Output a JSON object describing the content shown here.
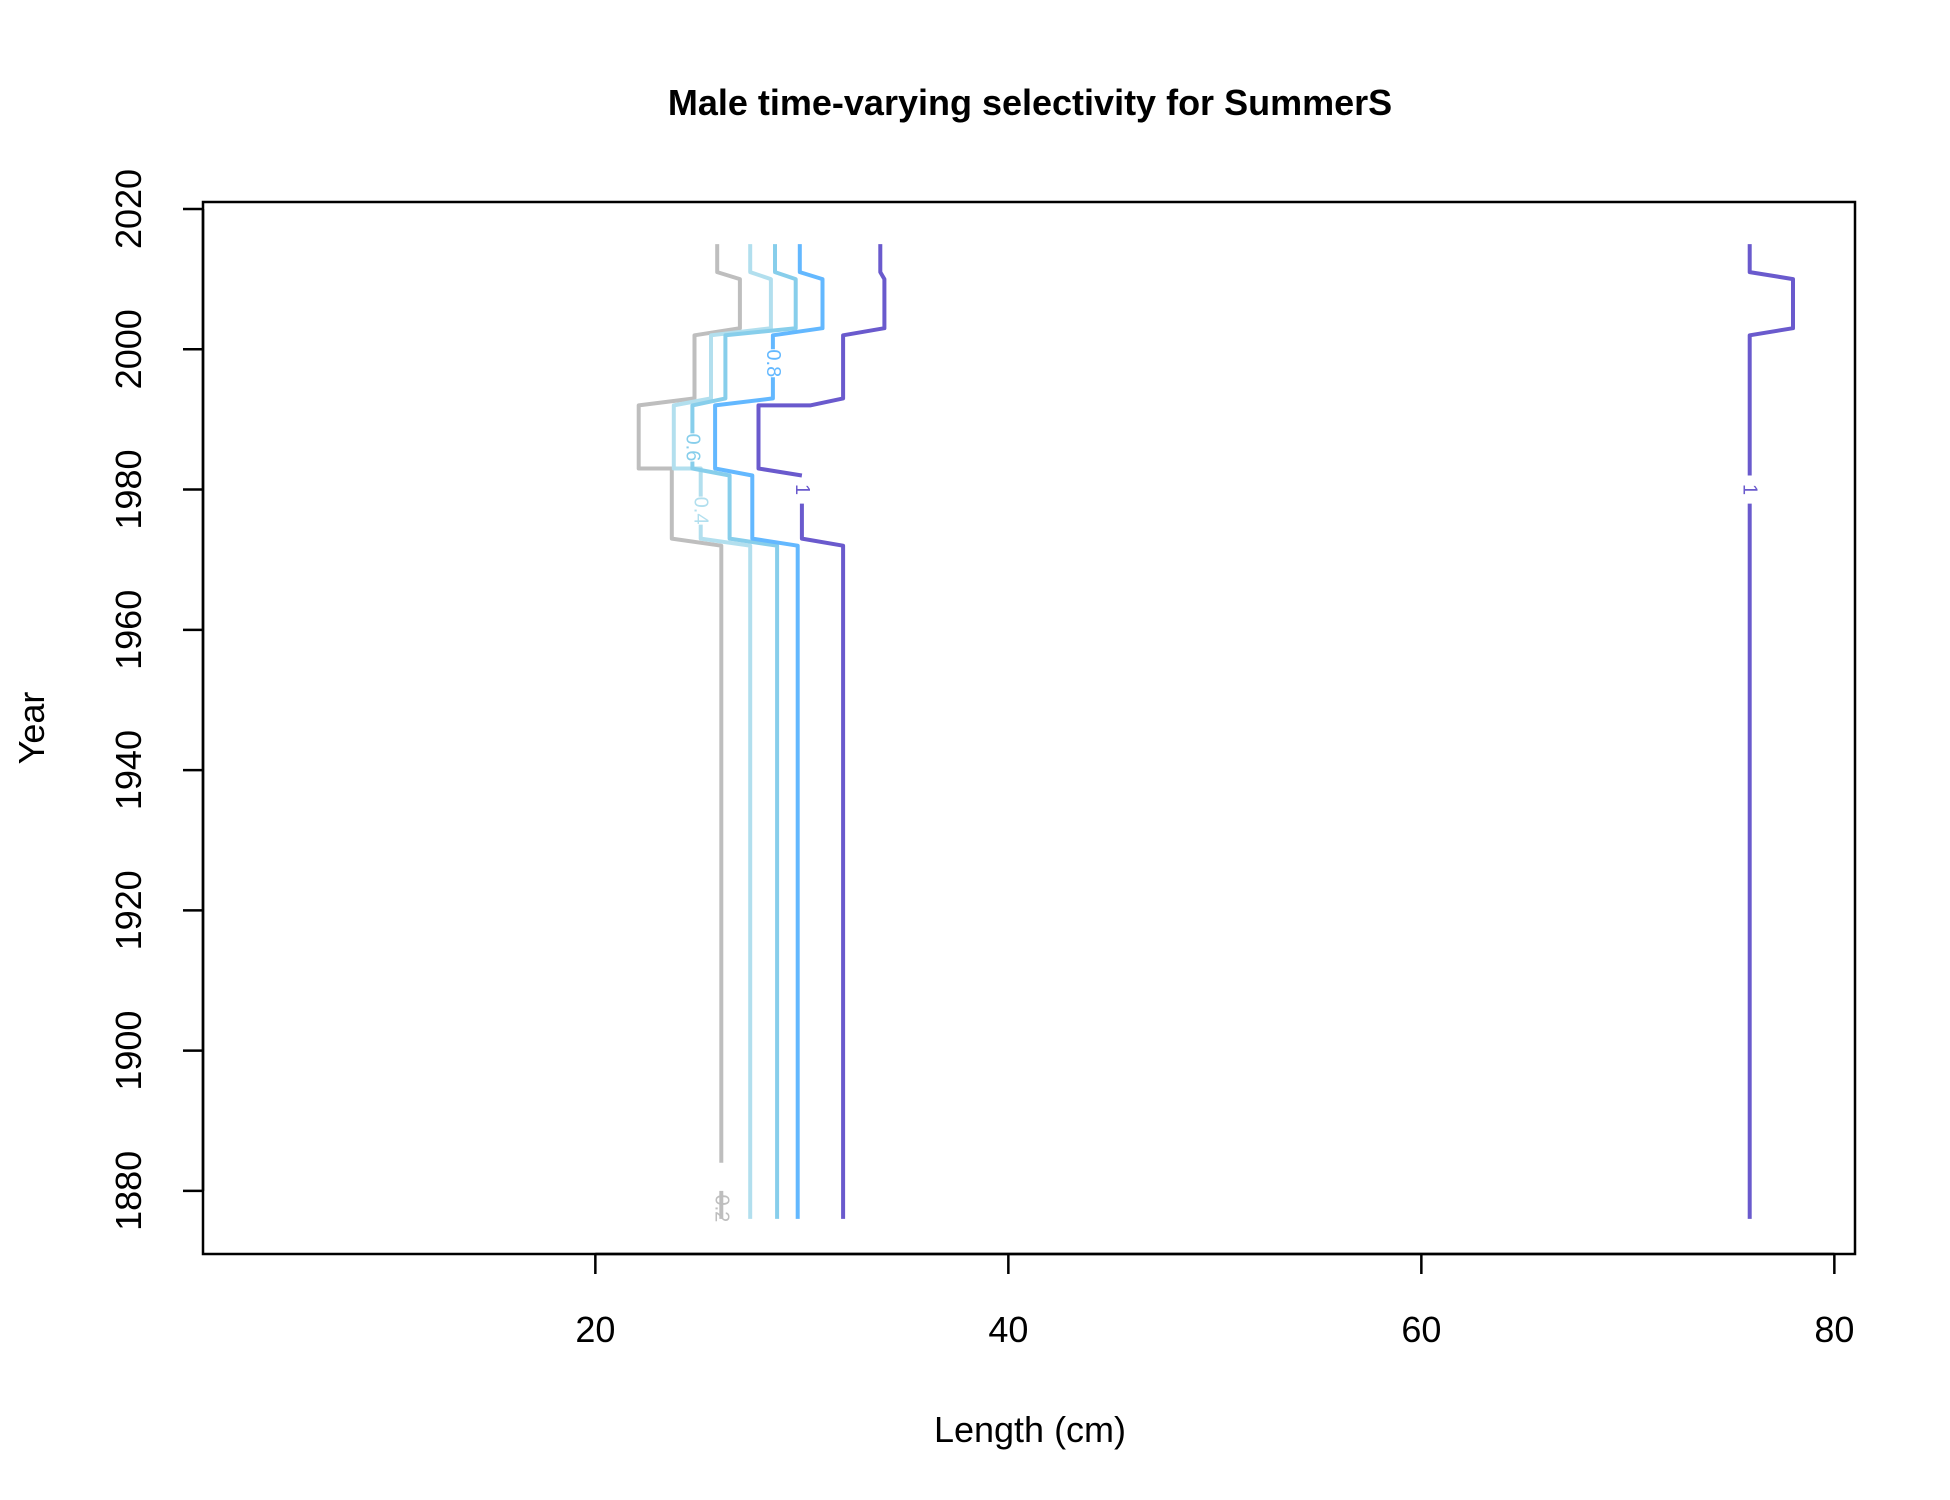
{
  "chart_data": {
    "type": "line",
    "title": "Male time-varying selectivity for SummerS",
    "xlabel": "Length (cm)",
    "ylabel": "Year",
    "xlim": [
      1,
      81
    ],
    "ylim": [
      1871,
      2021
    ],
    "x_ticks": [
      {
        "value": 20,
        "label": "20"
      },
      {
        "value": 40,
        "label": "40"
      },
      {
        "value": 60,
        "label": "60"
      },
      {
        "value": 80,
        "label": "80"
      }
    ],
    "y_ticks": [
      {
        "value": 1880,
        "label": "1880"
      },
      {
        "value": 1900,
        "label": "1900"
      },
      {
        "value": 1920,
        "label": "1920"
      },
      {
        "value": 1940,
        "label": "1940"
      },
      {
        "value": 1960,
        "label": "1960"
      },
      {
        "value": 1980,
        "label": "1980"
      },
      {
        "value": 2000,
        "label": "2000"
      },
      {
        "value": 2020,
        "label": "2020"
      }
    ],
    "series": [
      {
        "label": "0.2",
        "color": "#bebebe",
        "label_at": [
          26.1,
          1877.5
        ],
        "segments": [
          [
            [
              26.1,
              1876
            ],
            [
              26.1,
              1880
            ]
          ],
          [
            [
              26.1,
              1884
            ],
            [
              26.1,
              1972
            ],
            [
              23.7,
              1973
            ],
            [
              23.7,
              1983
            ],
            [
              22.1,
              1983
            ],
            [
              22.1,
              1992
            ],
            [
              24.8,
              1993
            ],
            [
              24.8,
              2002
            ],
            [
              27.0,
              2003
            ],
            [
              27.0,
              2010
            ],
            [
              25.9,
              2011
            ],
            [
              25.9,
              2015
            ]
          ]
        ]
      },
      {
        "label": "0.4",
        "color": "#b2dfee",
        "label_at": [
          25.1,
          1977
        ],
        "segments": [
          [
            [
              27.5,
              1876
            ],
            [
              27.5,
              1972
            ],
            [
              25.1,
              1973
            ],
            [
              25.1,
              1975
            ]
          ],
          [
            [
              25.1,
              1979
            ],
            [
              25.1,
              1983
            ],
            [
              23.8,
              1983
            ],
            [
              23.8,
              1992
            ],
            [
              25.6,
              1993
            ],
            [
              25.6,
              2002
            ],
            [
              28.5,
              2003
            ],
            [
              28.5,
              2010
            ],
            [
              27.5,
              2011
            ],
            [
              27.5,
              2015
            ]
          ]
        ]
      },
      {
        "label": "0.6",
        "color": "#87ceeb",
        "label_at": [
          24.7,
          1986
        ],
        "segments": [
          [
            [
              28.8,
              1876
            ],
            [
              28.8,
              1972
            ],
            [
              26.5,
              1973
            ],
            [
              26.5,
              1982
            ],
            [
              24.7,
              1983
            ],
            [
              24.7,
              1984
            ]
          ],
          [
            [
              24.7,
              1988
            ],
            [
              24.7,
              1992
            ],
            [
              26.3,
              1993
            ],
            [
              26.3,
              2002
            ],
            [
              29.7,
              2003
            ],
            [
              29.7,
              2010
            ],
            [
              28.7,
              2011
            ],
            [
              28.7,
              2015
            ]
          ]
        ]
      },
      {
        "label": "0.8",
        "color": "#63b8ff",
        "label_at": [
          28.6,
          1998
        ],
        "segments": [
          [
            [
              29.8,
              1876
            ],
            [
              29.8,
              1972
            ],
            [
              27.6,
              1973
            ],
            [
              27.6,
              1982
            ],
            [
              25.8,
              1983
            ],
            [
              25.8,
              1992
            ],
            [
              28.6,
              1993
            ],
            [
              28.6,
              1996
            ]
          ],
          [
            [
              28.6,
              2000
            ],
            [
              28.6,
              2002
            ],
            [
              31.0,
              2003
            ],
            [
              31.0,
              2010
            ],
            [
              29.9,
              2011
            ],
            [
              29.9,
              2015
            ]
          ]
        ]
      },
      {
        "label": "1",
        "color": "#6a5acd",
        "label_at": [
          30.0,
          1980
        ],
        "segments": [
          [
            [
              32.0,
              1876
            ],
            [
              32.0,
              1972
            ],
            [
              30.0,
              1973
            ],
            [
              30.0,
              1978
            ]
          ],
          [
            [
              30.0,
              1982
            ],
            [
              27.9,
              1983
            ],
            [
              27.9,
              1992
            ],
            [
              30.4,
              1992
            ],
            [
              32.0,
              1993
            ],
            [
              32.0,
              2002
            ],
            [
              34.0,
              2003
            ],
            [
              34.0,
              2010
            ],
            [
              33.8,
              2011
            ],
            [
              33.8,
              2015
            ]
          ]
        ]
      },
      {
        "label": "1",
        "color": "#6a5acd",
        "label_at": [
          75.9,
          1980
        ],
        "segments": [
          [
            [
              75.9,
              1876
            ],
            [
              75.9,
              1978
            ]
          ],
          [
            [
              75.9,
              1982
            ],
            [
              75.9,
              2002
            ],
            [
              78.0,
              2003
            ],
            [
              78.0,
              2010
            ],
            [
              75.9,
              2011
            ],
            [
              75.9,
              2015
            ]
          ]
        ]
      }
    ]
  }
}
